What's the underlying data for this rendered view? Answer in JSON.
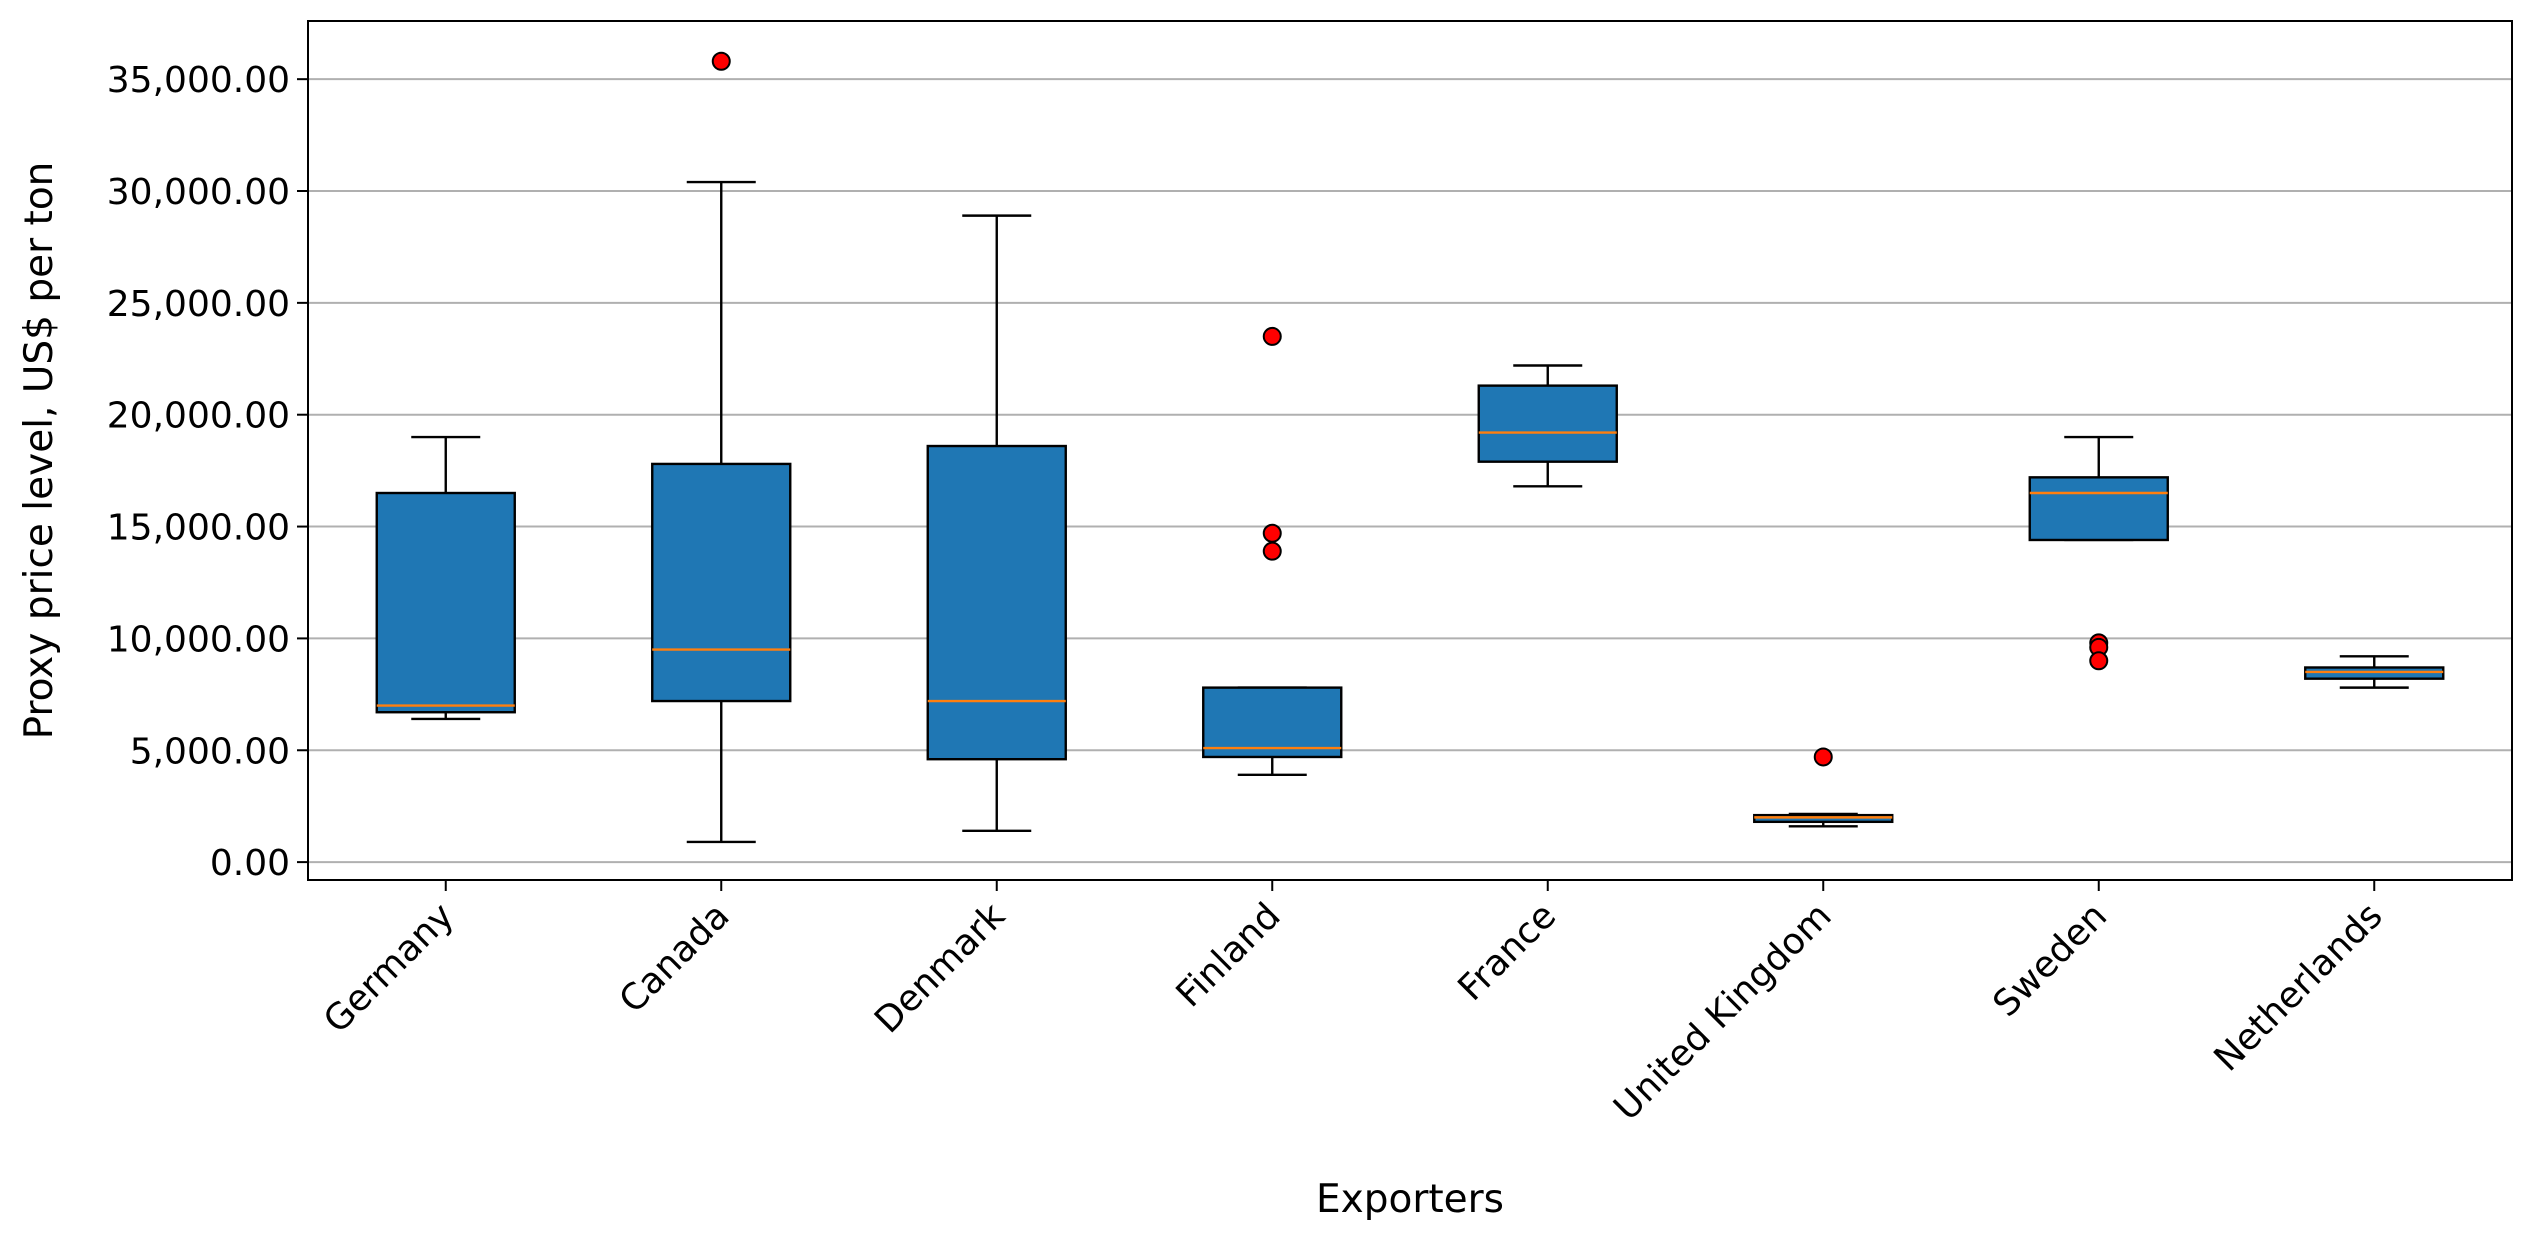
{
  "chart_data": {
    "type": "boxplot",
    "title": "",
    "xlabel": "Exporters",
    "ylabel": "Proxy price level, US$ per ton",
    "ylim": [
      -800,
      37600
    ],
    "yticks": [
      0,
      5000,
      10000,
      15000,
      20000,
      25000,
      30000,
      35000
    ],
    "ytick_labels": [
      "0.00",
      "5,000.00",
      "10,000.00",
      "15,000.00",
      "20,000.00",
      "25,000.00",
      "30,000.00",
      "35,000.00"
    ],
    "grid": "horizontal",
    "colors": {
      "box": "#1f77b4",
      "median": "#ff7f0e",
      "outlier": "#ff0000",
      "grid": "#b0b0b0"
    },
    "categories": [
      "Germany",
      "Canada",
      "Denmark",
      "Finland",
      "France",
      "United Kingdom",
      "Sweden",
      "Netherlands"
    ],
    "boxes": [
      {
        "category": "Germany",
        "whisker_low": 6400,
        "q1": 6700,
        "median": 7000,
        "q3": 16500,
        "whisker_high": 19000,
        "outliers": []
      },
      {
        "category": "Canada",
        "whisker_low": 900,
        "q1": 7200,
        "median": 9500,
        "q3": 17800,
        "whisker_high": 30400,
        "outliers": [
          35800
        ]
      },
      {
        "category": "Denmark",
        "whisker_low": 1400,
        "q1": 4600,
        "median": 7200,
        "q3": 18600,
        "whisker_high": 28900,
        "outliers": []
      },
      {
        "category": "Finland",
        "whisker_low": 3900,
        "q1": 4700,
        "median": 5100,
        "q3": 7800,
        "whisker_high": 7800,
        "outliers": [
          23500,
          14700,
          13900
        ]
      },
      {
        "category": "France",
        "whisker_low": 16800,
        "q1": 17900,
        "median": 19200,
        "q3": 21300,
        "whisker_high": 22200,
        "outliers": []
      },
      {
        "category": "United Kingdom",
        "whisker_low": 1600,
        "q1": 1800,
        "median": 2000,
        "q3": 2100,
        "whisker_high": 2150,
        "outliers": [
          4700
        ]
      },
      {
        "category": "Sweden",
        "whisker_low": 14400,
        "q1": 14400,
        "median": 16500,
        "q3": 17200,
        "whisker_high": 19000,
        "outliers": [
          9800,
          9600,
          9000
        ]
      },
      {
        "category": "Netherlands",
        "whisker_low": 7800,
        "q1": 8200,
        "median": 8500,
        "q3": 8700,
        "whisker_high": 9200,
        "outliers": []
      }
    ]
  }
}
